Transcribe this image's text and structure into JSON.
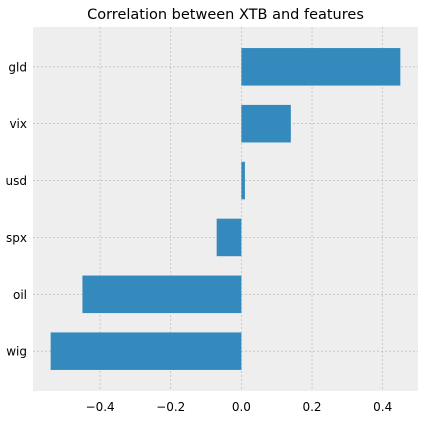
{
  "chart_data": {
    "type": "bar",
    "orientation": "horizontal",
    "title": "Correlation between XTB and features",
    "xlabel": "",
    "ylabel": "",
    "categories": [
      "wig",
      "oil",
      "spx",
      "usd",
      "vix",
      "gld"
    ],
    "values": [
      -0.54,
      -0.45,
      -0.07,
      0.01,
      0.14,
      0.45
    ],
    "xlim": [
      -0.59,
      0.5
    ],
    "xticks": [
      -0.4,
      -0.2,
      0.0,
      0.2,
      0.4
    ],
    "xtick_labels": [
      "−0.4",
      "−0.2",
      "0.0",
      "0.2",
      "0.4"
    ],
    "grid": true,
    "colors": {
      "bar": "#348abd",
      "plot_background": "#eeeeee",
      "grid": "#b2b2b2",
      "frame": "#bcbcbc"
    }
  }
}
